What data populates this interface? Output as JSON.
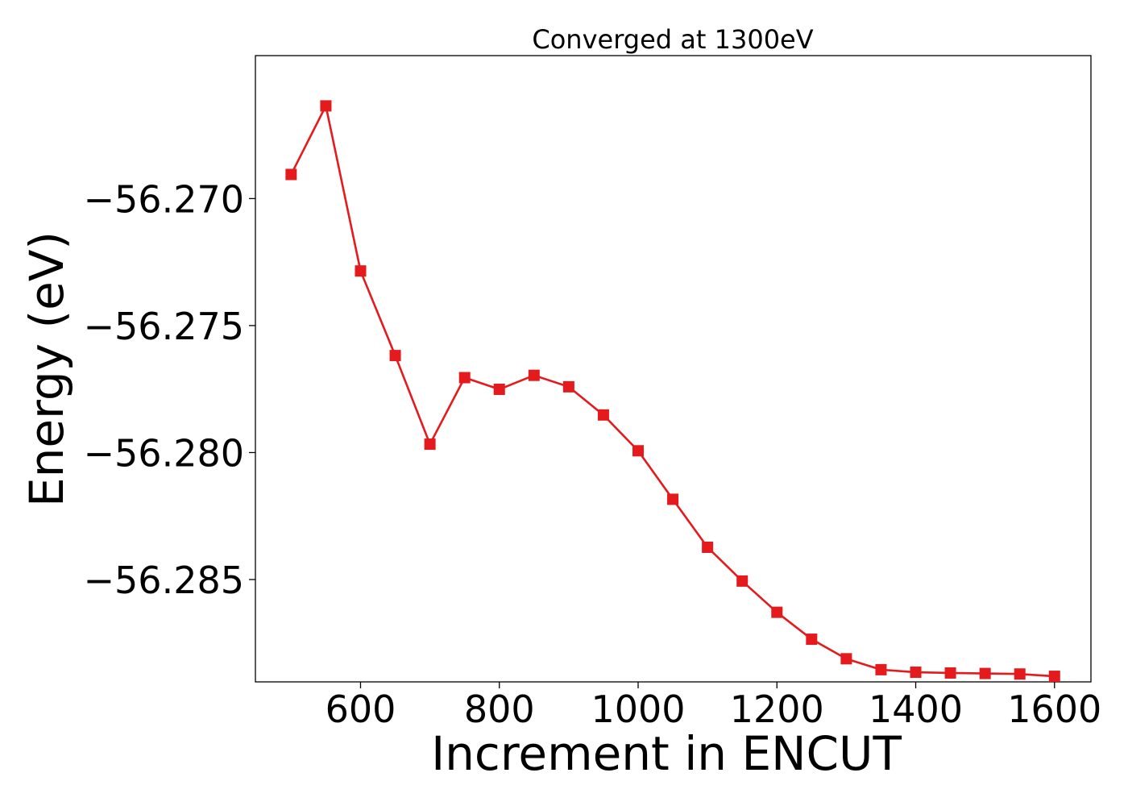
{
  "chart_data": {
    "type": "line",
    "title": "Converged at 1300eV",
    "xlabel": "Increment in ENCUT",
    "ylabel": "Energy (eV)",
    "xlim": [
      448.5,
      1652.5
    ],
    "ylim": [
      -56.28903,
      -56.26437
    ],
    "xticks": [
      600,
      800,
      1000,
      1200,
      1400,
      1600
    ],
    "yticks": [
      -56.27,
      -56.275,
      -56.28,
      -56.285
    ],
    "xtick_labels": [
      "600",
      "800",
      "1000",
      "1200",
      "1400",
      "1600"
    ],
    "ytick_labels": [
      "−56.270",
      "−56.275",
      "−56.280",
      "−56.285"
    ],
    "grid": false,
    "series": [
      {
        "color": "#e41a1c",
        "marker": "square",
        "x": [
          500,
          550,
          600,
          650,
          700,
          750,
          800,
          850,
          900,
          950,
          1000,
          1050,
          1100,
          1150,
          1200,
          1250,
          1300,
          1350,
          1400,
          1450,
          1500,
          1550,
          1600
        ],
        "values": [
          -56.26905,
          -56.26635,
          -56.27285,
          -56.27618,
          -56.27967,
          -56.27705,
          -56.27751,
          -56.27696,
          -56.27741,
          -56.27852,
          -56.27993,
          -56.28184,
          -56.28373,
          -56.28506,
          -56.28629,
          -56.28735,
          -56.28812,
          -56.28855,
          -56.28865,
          -56.28868,
          -56.2887,
          -56.28872,
          -56.28881
        ]
      }
    ]
  }
}
